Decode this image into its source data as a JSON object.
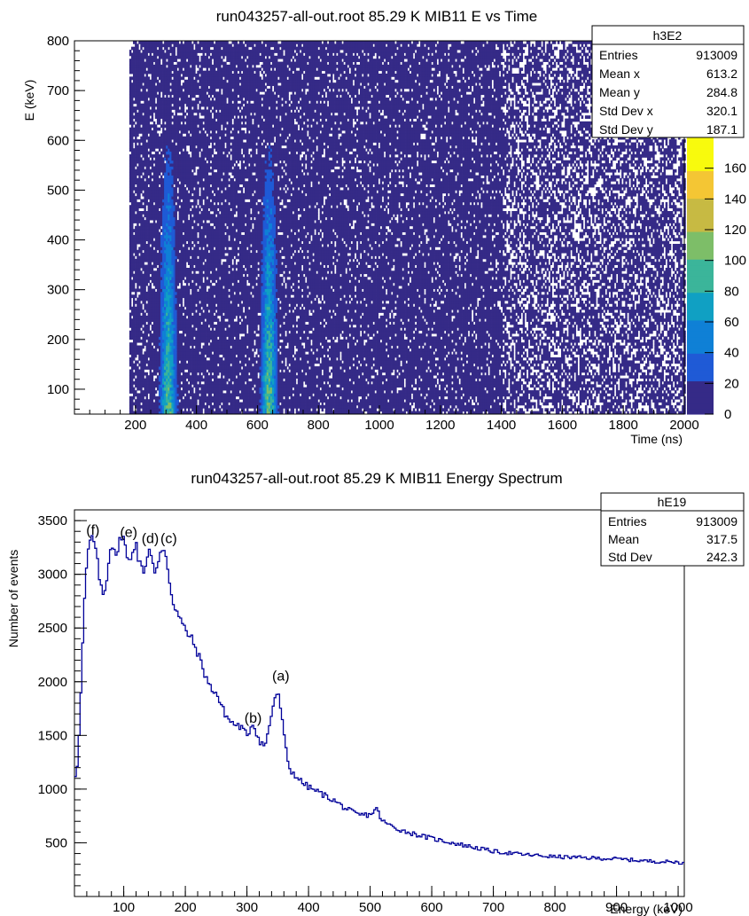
{
  "colors": {
    "line": "#000099",
    "axis": "#000000",
    "background": "#ffffff",
    "palette": [
      "#352a87",
      "#1f5ad6",
      "#0f80d6",
      "#10a0c3",
      "#3bb59a",
      "#7dbe68",
      "#c7ba43",
      "#f4c634",
      "#f8fa0d"
    ]
  },
  "chart_data": [
    {
      "type": "heatmap",
      "title": "run043257-all-out.root 85.29 K MIB11 E vs Time",
      "xlabel": "Time (ns)",
      "ylabel": "E (keV)",
      "xlim": [
        0,
        2000
      ],
      "ylim": [
        50,
        800
      ],
      "x_ticks": [
        "200",
        "400",
        "600",
        "800",
        "1000",
        "1200",
        "1400",
        "1600",
        "1800",
        "2000"
      ],
      "y_ticks": [
        "100",
        "200",
        "300",
        "400",
        "500",
        "600",
        "700",
        "800"
      ],
      "z_ticks": [
        "0",
        "20",
        "40",
        "60",
        "80",
        "100",
        "120",
        "140",
        "160"
      ],
      "zlim": [
        0,
        180
      ],
      "bands": [
        {
          "time": 305,
          "width": 35,
          "peak_counts": 160
        },
        {
          "time": 635,
          "width": 35,
          "peak_counts": 170
        }
      ],
      "onset_time": 185,
      "stats": {
        "name": "h3E2",
        "rows": [
          {
            "label": "Entries",
            "value": "913009"
          },
          {
            "label": "Mean x",
            "value": "613.2"
          },
          {
            "label": "Mean y",
            "value": "284.8"
          },
          {
            "label": "Std Dev x",
            "value": "320.1"
          },
          {
            "label": "Std Dev y",
            "value": "187.1"
          }
        ]
      }
    },
    {
      "type": "line",
      "title": "run043257-all-out.root 85.29 K MIB11 Energy Spectrum",
      "xlabel": "Energy (keV)",
      "ylabel": "Number of events",
      "xlim": [
        20,
        1010
      ],
      "ylim": [
        0,
        3600
      ],
      "x_ticks": [
        "100",
        "200",
        "300",
        "400",
        "500",
        "600",
        "700",
        "800",
        "900",
        "1000"
      ],
      "y_ticks": [
        "500",
        "1000",
        "1500",
        "2000",
        "2500",
        "3000",
        "3500"
      ],
      "series": [
        {
          "x": [
            20,
            25,
            30,
            35,
            40,
            45,
            50,
            55,
            60,
            65,
            70,
            75,
            80,
            85,
            90,
            95,
            100,
            105,
            110,
            115,
            120,
            125,
            130,
            135,
            140,
            145,
            150,
            155,
            160,
            165,
            170,
            175,
            180,
            190,
            200,
            210,
            220,
            230,
            240,
            250,
            260,
            270,
            280,
            290,
            300,
            310,
            320,
            330,
            340,
            345,
            350,
            355,
            360,
            365,
            370,
            380,
            390,
            400,
            420,
            440,
            460,
            480,
            500,
            510,
            520,
            540,
            560,
            580,
            600,
            650,
            700,
            750,
            800,
            850,
            900,
            950,
            1000,
            1010
          ],
          "y": [
            1080,
            1250,
            1800,
            2600,
            3100,
            3300,
            3350,
            3200,
            3000,
            2800,
            2850,
            3100,
            3300,
            3250,
            3150,
            3380,
            3350,
            3150,
            3100,
            3250,
            3300,
            3100,
            3050,
            3050,
            3250,
            3200,
            3000,
            3050,
            3200,
            3250,
            3150,
            2900,
            2750,
            2600,
            2480,
            2400,
            2270,
            2100,
            1950,
            1900,
            1750,
            1650,
            1600,
            1580,
            1500,
            1620,
            1450,
            1400,
            1700,
            1850,
            1900,
            1750,
            1500,
            1300,
            1180,
            1120,
            1060,
            1020,
            960,
            900,
            820,
            760,
            760,
            820,
            700,
            640,
            600,
            570,
            540,
            480,
            420,
            390,
            370,
            360,
            350,
            330,
            320,
            310
          ]
        }
      ],
      "annotations": [
        {
          "text": "(f)",
          "x": 50,
          "y": 3370
        },
        {
          "text": "(e)",
          "x": 108,
          "y": 3350
        },
        {
          "text": "(d)",
          "x": 143,
          "y": 3290
        },
        {
          "text": "(c)",
          "x": 173,
          "y": 3290
        },
        {
          "text": "(b)",
          "x": 310,
          "y": 1620
        },
        {
          "text": "(a)",
          "x": 355,
          "y": 2010
        }
      ],
      "stats": {
        "name": "hE19",
        "rows": [
          {
            "label": "Entries",
            "value": "913009"
          },
          {
            "label": "Mean",
            "value": "317.5"
          },
          {
            "label": "Std Dev",
            "value": "242.3"
          }
        ]
      }
    }
  ]
}
